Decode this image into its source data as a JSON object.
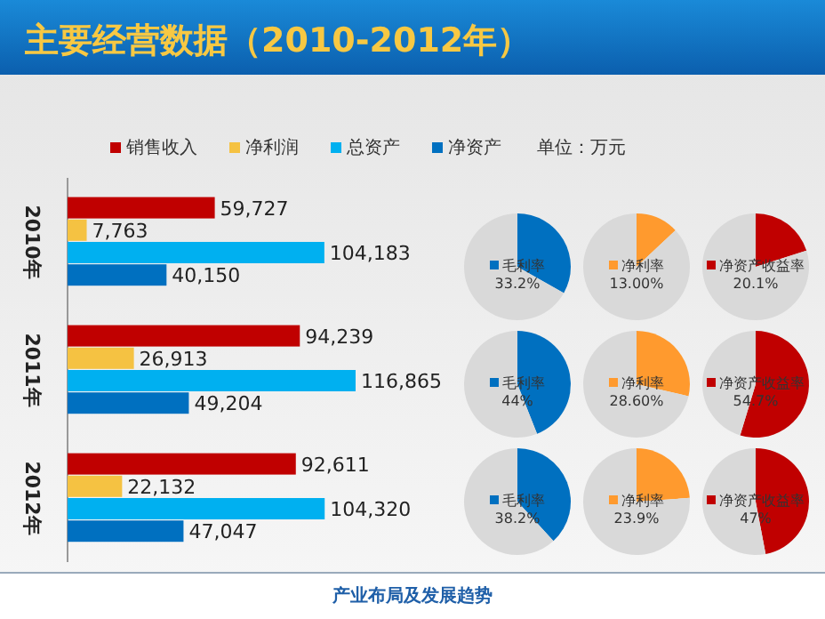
{
  "chart_data": [
    {
      "type": "bar",
      "orientation": "horizontal",
      "title": "主要经营数据（2010-2012年）",
      "categories": [
        "2010年",
        "2011年",
        "2012年"
      ],
      "legend": "top",
      "annotations": [
        "单位：万元",
        "产业布局及发展趋势"
      ],
      "series": [
        {
          "name": "销售收入",
          "color": "#c00000",
          "values": [
            59727,
            94239,
            92611
          ],
          "value_labels": [
            "59,727",
            "94,239",
            "92,611"
          ]
        },
        {
          "name": "净利润",
          "color": "#f5c242",
          "values": [
            7763,
            26913,
            22132
          ],
          "value_labels": [
            "7,763",
            "26,913",
            "22,132"
          ]
        },
        {
          "name": "总资产",
          "color": "#00b0f0",
          "values": [
            104183,
            116865,
            104320
          ],
          "value_labels": [
            "104,183",
            "116,865",
            "104,320"
          ]
        },
        {
          "name": "净资产",
          "color": "#0070c0",
          "values": [
            40150,
            49204,
            47047
          ],
          "value_labels": [
            "40,150",
            "49,204",
            "47,047"
          ]
        }
      ]
    },
    {
      "type": "pie",
      "categories": [
        "毛利率",
        null
      ],
      "values": [
        33.2,
        66.8
      ],
      "colors": [
        "#0070c0",
        "#d9d9d9"
      ],
      "value_labels": [
        "33.2%",
        null
      ]
    },
    {
      "type": "pie",
      "categories": [
        "净利率",
        null
      ],
      "values": [
        13.0,
        87.0
      ],
      "colors": [
        "#ff9a2e",
        "#d9d9d9"
      ],
      "value_labels": [
        "13.00%",
        null
      ]
    },
    {
      "type": "pie",
      "categories": [
        "净资产收益率",
        null
      ],
      "values": [
        20.1,
        79.9
      ],
      "colors": [
        "#c00000",
        "#d9d9d9"
      ],
      "value_labels": [
        "20.1%",
        null
      ]
    },
    {
      "type": "pie",
      "categories": [
        "毛利率",
        null
      ],
      "values": [
        44,
        56
      ],
      "colors": [
        "#0070c0",
        "#d9d9d9"
      ],
      "value_labels": [
        "44%",
        null
      ]
    },
    {
      "type": "pie",
      "categories": [
        "净利率",
        null
      ],
      "values": [
        28.6,
        71.4
      ],
      "colors": [
        "#ff9a2e",
        "#d9d9d9"
      ],
      "value_labels": [
        "28.60%",
        null
      ]
    },
    {
      "type": "pie",
      "categories": [
        "净资产收益率",
        null
      ],
      "values": [
        54.7,
        45.3
      ],
      "colors": [
        "#c00000",
        "#d9d9d9"
      ],
      "value_labels": [
        "54.7%",
        null
      ]
    },
    {
      "type": "pie",
      "categories": [
        "毛利率",
        null
      ],
      "values": [
        38.2,
        61.8
      ],
      "colors": [
        "#0070c0",
        "#d9d9d9"
      ],
      "value_labels": [
        "38.2%",
        null
      ]
    },
    {
      "type": "pie",
      "categories": [
        "净利率",
        null
      ],
      "values": [
        23.9,
        76.1
      ],
      "colors": [
        "#ff9a2e",
        "#d9d9d9"
      ],
      "value_labels": [
        "23.9%",
        null
      ]
    },
    {
      "type": "pie",
      "categories": [
        "净资产收益率",
        null
      ],
      "values": [
        47,
        53
      ],
      "colors": [
        "#c00000",
        "#d9d9d9"
      ],
      "value_labels": [
        "47%",
        null
      ]
    }
  ]
}
